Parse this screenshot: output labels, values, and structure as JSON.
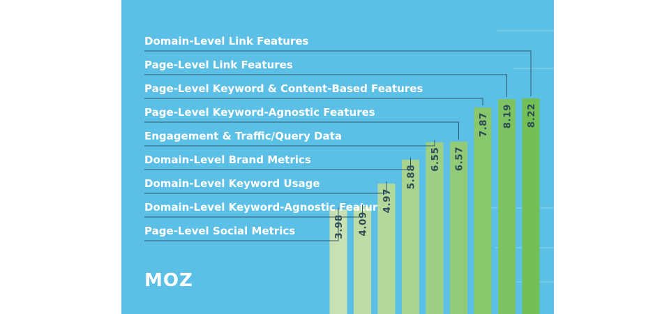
{
  "chart_data": {
    "type": "bar",
    "orientation": "vertical",
    "categories": [
      "Page-Level Social Metrics",
      "Domain-Level Keyword-Agnostic Features",
      "Domain-Level Keyword Usage",
      "Domain-Level Brand Metrics",
      "Engagement & Traffic/Query Data",
      "Page-Level Keyword-Agnostic Features",
      "Page-Level Keyword & Content-Based Features",
      "Page-Level Link Features",
      "Domain-Level Link Features"
    ],
    "values": [
      3.98,
      4.09,
      4.97,
      5.88,
      6.55,
      6.57,
      7.87,
      8.19,
      8.22
    ],
    "value_labels": [
      "3.98",
      "4.09",
      "4.97",
      "5.88",
      "6.55",
      "6.57",
      "7.87",
      "8.19",
      "8.22"
    ],
    "title": "",
    "xlabel": "",
    "ylabel": "",
    "legend": "none",
    "grid": false,
    "colors": {
      "background": "#5bbfe6",
      "bar_light": "#c8e0b2",
      "bar_dark": "#72bf55",
      "label_text": "#ffffff",
      "value_text": "#2e4a55",
      "leader_line": "#2f5a6b"
    }
  },
  "brand": {
    "logo_text": "MOZ"
  }
}
